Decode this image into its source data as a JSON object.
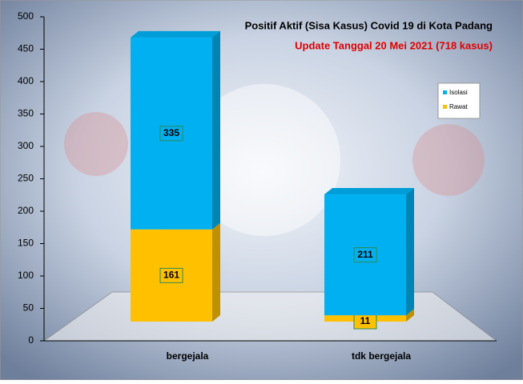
{
  "chart_data": {
    "type": "stacked-bar-3d",
    "title": "Positif Aktif  (Sisa Kasus) Covid 19 di Kota Padang",
    "subtitle": "Update Tanggal  20 Mei 2021  (718 kasus)",
    "categories": [
      "bergejala",
      "tdk bergejala"
    ],
    "series": [
      {
        "name": "Rawat",
        "color": "#ffc000",
        "values": [
          161,
          11
        ]
      },
      {
        "name": "Isolasi",
        "color": "#00b0f0",
        "values": [
          335,
          211
        ]
      }
    ],
    "ylim": [
      0,
      500
    ],
    "yticks": [
      0,
      50,
      100,
      150,
      200,
      250,
      300,
      350,
      400,
      450,
      500
    ],
    "legend": "right"
  }
}
